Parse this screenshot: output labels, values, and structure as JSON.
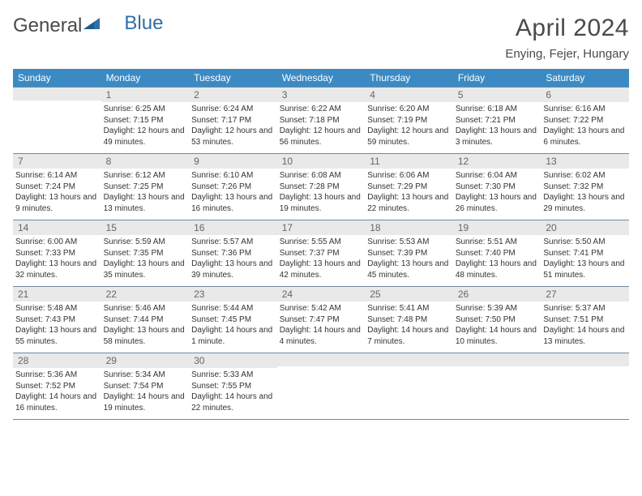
{
  "logo": {
    "text1": "General",
    "text2": "Blue"
  },
  "title": "April 2024",
  "location": "Enying, Fejer, Hungary",
  "colors": {
    "header_bg": "#3b8ac4",
    "header_text": "#ffffff",
    "numbar_bg": "#e9e9e9",
    "rule": "#6f8aa0",
    "body_text": "#333333",
    "title_text": "#4a4a4a"
  },
  "daysOfWeek": [
    "Sunday",
    "Monday",
    "Tuesday",
    "Wednesday",
    "Thursday",
    "Friday",
    "Saturday"
  ],
  "weeks": [
    [
      null,
      {
        "n": "1",
        "sr": "6:25 AM",
        "ss": "7:15 PM",
        "dl": "12 hours and 49 minutes."
      },
      {
        "n": "2",
        "sr": "6:24 AM",
        "ss": "7:17 PM",
        "dl": "12 hours and 53 minutes."
      },
      {
        "n": "3",
        "sr": "6:22 AM",
        "ss": "7:18 PM",
        "dl": "12 hours and 56 minutes."
      },
      {
        "n": "4",
        "sr": "6:20 AM",
        "ss": "7:19 PM",
        "dl": "12 hours and 59 minutes."
      },
      {
        "n": "5",
        "sr": "6:18 AM",
        "ss": "7:21 PM",
        "dl": "13 hours and 3 minutes."
      },
      {
        "n": "6",
        "sr": "6:16 AM",
        "ss": "7:22 PM",
        "dl": "13 hours and 6 minutes."
      }
    ],
    [
      {
        "n": "7",
        "sr": "6:14 AM",
        "ss": "7:24 PM",
        "dl": "13 hours and 9 minutes."
      },
      {
        "n": "8",
        "sr": "6:12 AM",
        "ss": "7:25 PM",
        "dl": "13 hours and 13 minutes."
      },
      {
        "n": "9",
        "sr": "6:10 AM",
        "ss": "7:26 PM",
        "dl": "13 hours and 16 minutes."
      },
      {
        "n": "10",
        "sr": "6:08 AM",
        "ss": "7:28 PM",
        "dl": "13 hours and 19 minutes."
      },
      {
        "n": "11",
        "sr": "6:06 AM",
        "ss": "7:29 PM",
        "dl": "13 hours and 22 minutes."
      },
      {
        "n": "12",
        "sr": "6:04 AM",
        "ss": "7:30 PM",
        "dl": "13 hours and 26 minutes."
      },
      {
        "n": "13",
        "sr": "6:02 AM",
        "ss": "7:32 PM",
        "dl": "13 hours and 29 minutes."
      }
    ],
    [
      {
        "n": "14",
        "sr": "6:00 AM",
        "ss": "7:33 PM",
        "dl": "13 hours and 32 minutes."
      },
      {
        "n": "15",
        "sr": "5:59 AM",
        "ss": "7:35 PM",
        "dl": "13 hours and 35 minutes."
      },
      {
        "n": "16",
        "sr": "5:57 AM",
        "ss": "7:36 PM",
        "dl": "13 hours and 39 minutes."
      },
      {
        "n": "17",
        "sr": "5:55 AM",
        "ss": "7:37 PM",
        "dl": "13 hours and 42 minutes."
      },
      {
        "n": "18",
        "sr": "5:53 AM",
        "ss": "7:39 PM",
        "dl": "13 hours and 45 minutes."
      },
      {
        "n": "19",
        "sr": "5:51 AM",
        "ss": "7:40 PM",
        "dl": "13 hours and 48 minutes."
      },
      {
        "n": "20",
        "sr": "5:50 AM",
        "ss": "7:41 PM",
        "dl": "13 hours and 51 minutes."
      }
    ],
    [
      {
        "n": "21",
        "sr": "5:48 AM",
        "ss": "7:43 PM",
        "dl": "13 hours and 55 minutes."
      },
      {
        "n": "22",
        "sr": "5:46 AM",
        "ss": "7:44 PM",
        "dl": "13 hours and 58 minutes."
      },
      {
        "n": "23",
        "sr": "5:44 AM",
        "ss": "7:45 PM",
        "dl": "14 hours and 1 minute."
      },
      {
        "n": "24",
        "sr": "5:42 AM",
        "ss": "7:47 PM",
        "dl": "14 hours and 4 minutes."
      },
      {
        "n": "25",
        "sr": "5:41 AM",
        "ss": "7:48 PM",
        "dl": "14 hours and 7 minutes."
      },
      {
        "n": "26",
        "sr": "5:39 AM",
        "ss": "7:50 PM",
        "dl": "14 hours and 10 minutes."
      },
      {
        "n": "27",
        "sr": "5:37 AM",
        "ss": "7:51 PM",
        "dl": "14 hours and 13 minutes."
      }
    ],
    [
      {
        "n": "28",
        "sr": "5:36 AM",
        "ss": "7:52 PM",
        "dl": "14 hours and 16 minutes."
      },
      {
        "n": "29",
        "sr": "5:34 AM",
        "ss": "7:54 PM",
        "dl": "14 hours and 19 minutes."
      },
      {
        "n": "30",
        "sr": "5:33 AM",
        "ss": "7:55 PM",
        "dl": "14 hours and 22 minutes."
      },
      null,
      null,
      null,
      null
    ]
  ],
  "labels": {
    "sunrise": "Sunrise:",
    "sunset": "Sunset:",
    "daylight": "Daylight:"
  }
}
